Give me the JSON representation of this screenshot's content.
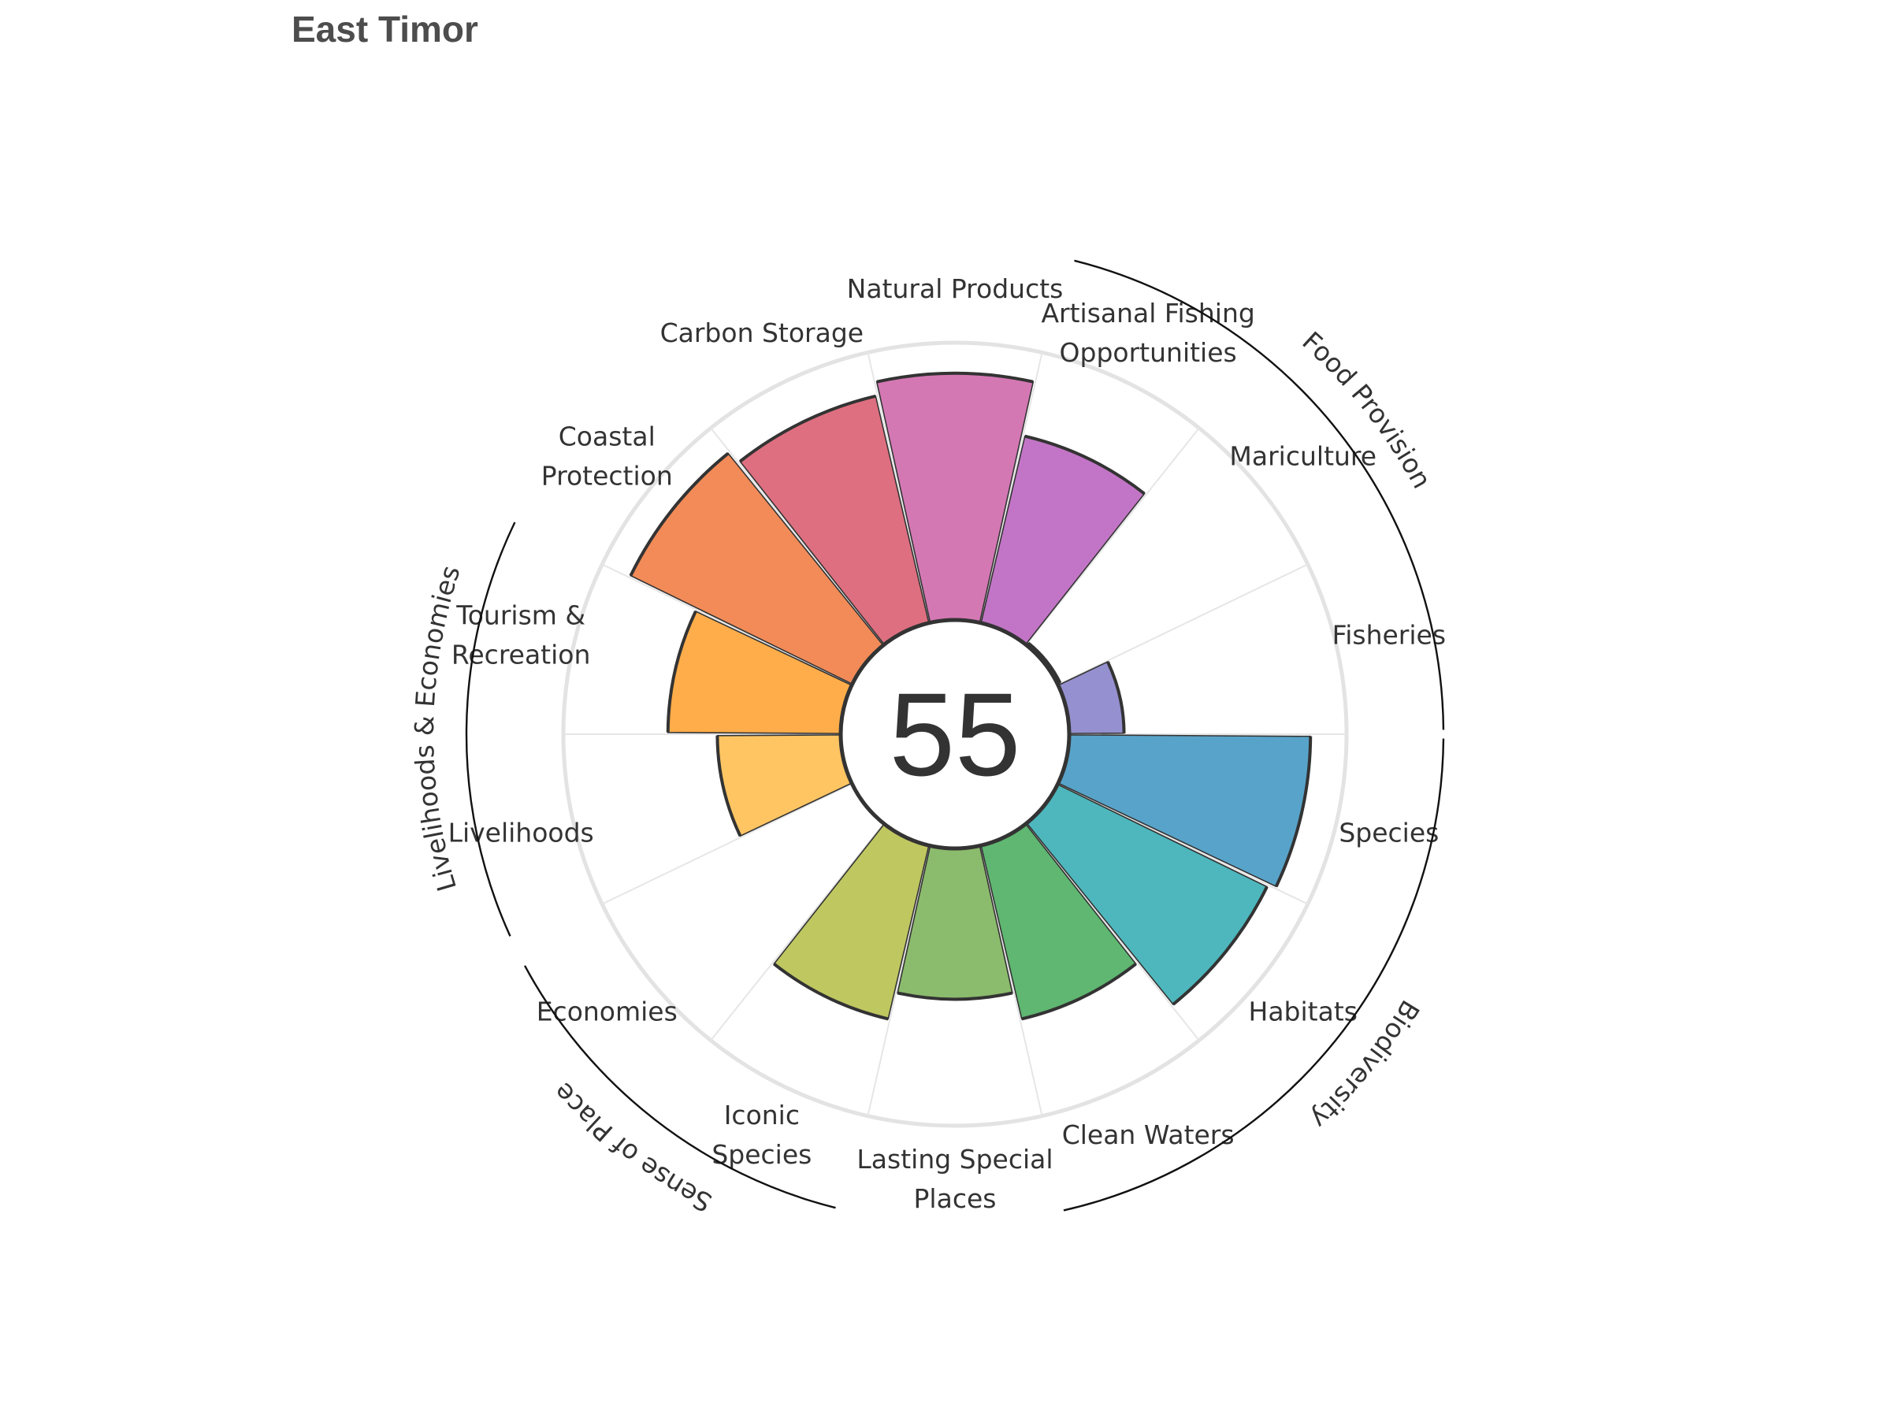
{
  "title": "East Timor",
  "chart_data": {
    "type": "polar-bar",
    "title": "East Timor",
    "score": "55",
    "max_value": 100,
    "goals": [
      {
        "label": [
          "Fisheries"
        ],
        "value": 20,
        "color": "#9590cf"
      },
      {
        "label": [
          "Mariculture"
        ],
        "value": 1,
        "color": "#a9a3de"
      },
      {
        "label": [
          "Artisanal Fishing",
          "Opportunities"
        ],
        "value": 70,
        "color": "#c275c6"
      },
      {
        "label": [
          "Natural Products"
        ],
        "value": 90,
        "color": "#d478b4"
      },
      {
        "label": [
          "Carbon Storage"
        ],
        "value": 85,
        "color": "#de6f80"
      },
      {
        "label": [
          "Coastal",
          "Protection"
        ],
        "value": 90,
        "color": "#f28b58"
      },
      {
        "label": [
          "Tourism &",
          "Recreation"
        ],
        "value": 63,
        "color": "#fead4a"
      },
      {
        "label": [
          "Livelihoods"
        ],
        "value": 45,
        "color": "#fec562"
      },
      {
        "label": [
          "Economies"
        ],
        "value": 0,
        "color": "#f5d57e"
      },
      {
        "label": [
          "Iconic",
          "Species"
        ],
        "value": 65,
        "color": "#bfc760"
      },
      {
        "label": [
          "Lasting Special",
          "Places"
        ],
        "value": 55,
        "color": "#8bbb6c"
      },
      {
        "label": [
          "Clean Waters"
        ],
        "value": 65,
        "color": "#5fb771"
      },
      {
        "label": [
          "Habitats"
        ],
        "value": 85,
        "color": "#4db7bd"
      },
      {
        "label": [
          "Species"
        ],
        "value": 88,
        "color": "#58a3c9"
      }
    ],
    "groups": [
      {
        "label": "Food Provision"
      },
      {
        "label": "Biodiversity"
      },
      {
        "label": "Sense of Place"
      },
      {
        "label": "Livelihoods & Economies"
      }
    ]
  }
}
